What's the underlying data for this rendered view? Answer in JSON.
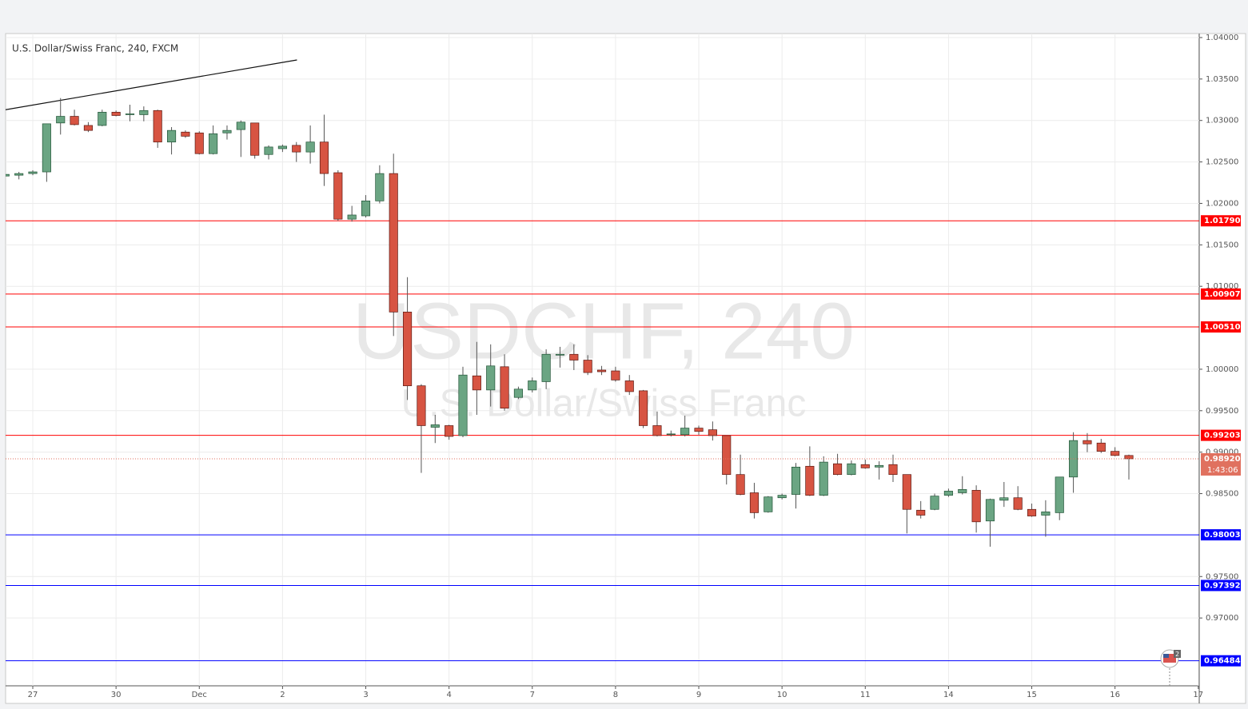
{
  "chart_data": {
    "type": "candlestick",
    "title": "U.S. Dollar/Swiss Franc, 240, FXCM",
    "watermark": [
      "USDCHF, 240",
      "U.S. Dollar/Swiss Franc"
    ],
    "up_color": "#6ba583",
    "down_color": "#d75442",
    "grid": true,
    "x": [
      -2,
      -1,
      0,
      1,
      2,
      3,
      4,
      5,
      6,
      7,
      8,
      9,
      10,
      11,
      12,
      13,
      14,
      15,
      16,
      17,
      18,
      19,
      20,
      21,
      22,
      23,
      24,
      25,
      26,
      27,
      28,
      29,
      30,
      31,
      32,
      33,
      34,
      35,
      36,
      37,
      38,
      39,
      40,
      41,
      42,
      43,
      44,
      45,
      46,
      47,
      48,
      49,
      50,
      51,
      52,
      53,
      54,
      55,
      56,
      57,
      58,
      59,
      60,
      61,
      62,
      63,
      64,
      65,
      66,
      67,
      68,
      69,
      70,
      71,
      72,
      73,
      74,
      75,
      76,
      77,
      78,
      79
    ],
    "open": [
      1.0233,
      1.0234,
      1.0236,
      1.0238,
      1.0297,
      1.0305,
      1.0294,
      1.0294,
      1.031,
      1.0307,
      1.0307,
      1.0312,
      1.0274,
      1.0286,
      1.0285,
      1.026,
      1.0285,
      1.0289,
      1.0297,
      1.0259,
      1.0266,
      1.027,
      1.0262,
      1.0274,
      1.0237,
      1.0181,
      1.0185,
      1.0203,
      1.0236,
      1.0069,
      0.998,
      0.993,
      0.9932,
      0.992,
      0.9992,
      0.9975,
      1.0003,
      0.9966,
      0.9975,
      0.9985,
      1.0017,
      1.0018,
      1.0011,
      0.9999,
      0.9998,
      0.9986,
      0.9974,
      0.9932,
      0.9921,
      0.9921,
      0.9929,
      0.9927,
      0.992,
      0.9873,
      0.9851,
      0.9828,
      0.9845,
      0.9849,
      0.9883,
      0.9848,
      0.9886,
      0.9873,
      0.9885,
      0.9882,
      0.9885,
      0.9873,
      0.983,
      0.9831,
      0.9848,
      0.9851,
      0.9854,
      0.9817,
      0.9842,
      0.9845,
      0.9831,
      0.9824,
      0.9827,
      0.987,
      0.9914,
      0.9911,
      0.9901,
      0.9896
    ],
    "high": [
      1.0241,
      1.0238,
      1.024,
      1.0296,
      1.0327,
      1.0313,
      1.0298,
      1.0313,
      1.0312,
      1.0319,
      1.0317,
      1.0313,
      1.0292,
      1.0288,
      1.0287,
      1.0294,
      1.0294,
      1.03,
      1.0297,
      1.027,
      1.0271,
      1.0274,
      1.0294,
      1.0307,
      1.024,
      1.0197,
      1.021,
      1.0246,
      1.026,
      1.0111,
      0.9982,
      0.9945,
      0.9933,
      1.0003,
      1.0033,
      1.003,
      1.0018,
      0.9979,
      0.999,
      1.0024,
      1.0027,
      1.003,
      1.0017,
      1.0004,
      1.0003,
      0.9993,
      0.9975,
      0.9949,
      0.9926,
      0.9944,
      0.9932,
      0.9937,
      0.992,
      0.9897,
      0.9863,
      0.9847,
      0.985,
      0.9887,
      0.9907,
      0.9895,
      0.9898,
      0.989,
      0.9891,
      0.9889,
      0.9897,
      0.9873,
      0.9841,
      0.985,
      0.9856,
      0.9871,
      0.986,
      0.9844,
      0.9864,
      0.9859,
      0.9838,
      0.9842,
      0.987,
      0.9924,
      0.9923,
      0.9916,
      0.9906,
      0.9897
    ],
    "low": [
      1.0229,
      1.0229,
      1.0234,
      1.0226,
      1.0283,
      1.0294,
      1.0286,
      1.0293,
      1.0305,
      1.0299,
      1.0299,
      1.0267,
      1.0259,
      1.0279,
      1.0259,
      1.0259,
      1.0277,
      1.0256,
      1.0254,
      1.0253,
      1.0262,
      1.025,
      1.0248,
      1.0221,
      1.0179,
      1.0178,
      1.0183,
      1.02,
      1.004,
      0.9963,
      0.9875,
      0.9911,
      0.9915,
      0.9918,
      0.9945,
      0.9955,
      0.995,
      0.9964,
      0.9972,
      0.9976,
      1.0002,
      0.9999,
      0.9993,
      0.9993,
      0.9985,
      0.9969,
      0.9929,
      0.9919,
      0.9919,
      0.9919,
      0.9921,
      0.9914,
      0.9861,
      0.9848,
      0.982,
      0.9827,
      0.9843,
      0.9832,
      0.9847,
      0.9847,
      0.9872,
      0.9872,
      0.988,
      0.9867,
      0.9864,
      0.9802,
      0.982,
      0.983,
      0.9846,
      0.9849,
      0.9803,
      0.9786,
      0.9834,
      0.983,
      0.9822,
      0.9798,
      0.9818,
      0.9851,
      0.99,
      0.9899,
      0.9895,
      0.9867
    ],
    "close": [
      1.0235,
      1.0236,
      1.0238,
      1.0296,
      1.0305,
      1.0295,
      1.0288,
      1.031,
      1.0306,
      1.0308,
      1.0312,
      1.0274,
      1.0288,
      1.0281,
      1.026,
      1.0284,
      1.0288,
      1.0298,
      1.0258,
      1.0268,
      1.0269,
      1.0262,
      1.0274,
      1.0236,
      1.0181,
      1.0186,
      1.0203,
      1.0236,
      1.0069,
      0.998,
      0.9932,
      0.9933,
      0.9919,
      0.9993,
      0.9975,
      1.0004,
      0.9953,
      0.9976,
      0.9986,
      1.0018,
      1.0018,
      1.0011,
      0.9996,
      0.9997,
      0.9987,
      0.9973,
      0.9932,
      0.992,
      0.9922,
      0.9929,
      0.9925,
      0.992,
      0.9873,
      0.9849,
      0.9827,
      0.9846,
      0.9848,
      0.9882,
      0.9848,
      0.9888,
      0.9873,
      0.9886,
      0.9881,
      0.9884,
      0.9873,
      0.9831,
      0.9824,
      0.9847,
      0.9853,
      0.9855,
      0.9816,
      0.9843,
      0.9845,
      0.9831,
      0.9823,
      0.9828,
      0.987,
      0.9914,
      0.991,
      0.9901,
      0.9896,
      0.9892
    ],
    "xlim": [
      -1.96,
      84.07
    ],
    "ylim": [
      0.96182,
      1.04048
    ],
    "xticks": [
      {
        "value": 0,
        "label": "27"
      },
      {
        "value": 6,
        "label": "30"
      },
      {
        "value": 12,
        "label": "Dec"
      },
      {
        "value": 18,
        "label": "2"
      },
      {
        "value": 24,
        "label": "3"
      },
      {
        "value": 30,
        "label": "4"
      },
      {
        "value": 36,
        "label": "7"
      },
      {
        "value": 42,
        "label": "8"
      },
      {
        "value": 48,
        "label": "9"
      },
      {
        "value": 54,
        "label": "10"
      },
      {
        "value": 60,
        "label": "11"
      },
      {
        "value": 66,
        "label": "14"
      },
      {
        "value": 72,
        "label": "15"
      },
      {
        "value": 78,
        "label": "16"
      },
      {
        "value": 84,
        "label": "17"
      }
    ],
    "yticks": [
      {
        "value": 1.04,
        "label": "1.04000"
      },
      {
        "value": 1.035,
        "label": "1.03500"
      },
      {
        "value": 1.03,
        "label": "1.03000"
      },
      {
        "value": 1.025,
        "label": "1.02500"
      },
      {
        "value": 1.02,
        "label": "1.02000"
      },
      {
        "value": 1.015,
        "label": "1.01500"
      },
      {
        "value": 1.01,
        "label": "1.01000"
      },
      {
        "value": 1.0,
        "label": "1.00000"
      },
      {
        "value": 0.995,
        "label": "0.99500"
      },
      {
        "value": 0.99,
        "label": "0.99000"
      },
      {
        "value": 0.985,
        "label": "0.98500"
      },
      {
        "value": 0.975,
        "label": "0.97500"
      },
      {
        "value": 0.97,
        "label": "0.97000"
      }
    ],
    "levels": [
      {
        "value": 1.0179,
        "label": "1.01790",
        "color": "#ff0000"
      },
      {
        "value": 1.00907,
        "label": "1.00907",
        "color": "#ff0000"
      },
      {
        "value": 1.0051,
        "label": "1.00510",
        "color": "#ff0000"
      },
      {
        "value": 0.99203,
        "label": "0.99203",
        "color": "#ff0000"
      },
      {
        "value": 0.98003,
        "label": "0.98003",
        "color": "#0000ff"
      },
      {
        "value": 0.97392,
        "label": "0.97392",
        "color": "#0000ff"
      },
      {
        "value": 0.96484,
        "label": "0.96484",
        "color": "#0000ff"
      }
    ],
    "current_price": {
      "value": 0.9892,
      "label": "0.98920",
      "countdown": "1:43:06",
      "color": "#e0715f"
    },
    "trendline": {
      "x": [
        -1.96,
        19.04
      ],
      "y": [
        1.0313,
        1.0373
      ]
    },
    "event_marker": "2"
  }
}
